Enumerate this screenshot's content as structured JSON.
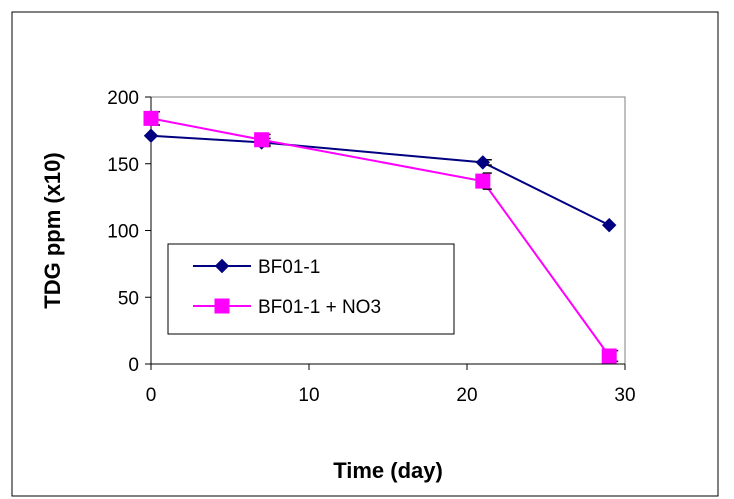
{
  "chart_data": {
    "type": "line",
    "xlabel": "Time (day)",
    "ylabel": "TDG ppm (x10)",
    "xlim": [
      0,
      30
    ],
    "ylim": [
      0,
      200
    ],
    "xticks": [
      0,
      10,
      20,
      30
    ],
    "yticks": [
      0,
      50,
      100,
      150,
      200
    ],
    "grid": false,
    "legend_position": "left",
    "series": [
      {
        "name": "BF01-1",
        "color": "#000080",
        "marker": "diamond",
        "x": [
          0,
          7,
          21,
          29
        ],
        "y": [
          171,
          166,
          151,
          104
        ],
        "err": [
          0,
          3,
          2,
          0
        ]
      },
      {
        "name": "BF01-1 + NO3",
        "color": "#FF00FF",
        "marker": "square",
        "x": [
          0,
          7,
          21,
          29
        ],
        "y": [
          184,
          168,
          137,
          6
        ],
        "err": [
          5,
          4,
          6,
          4
        ]
      }
    ]
  }
}
